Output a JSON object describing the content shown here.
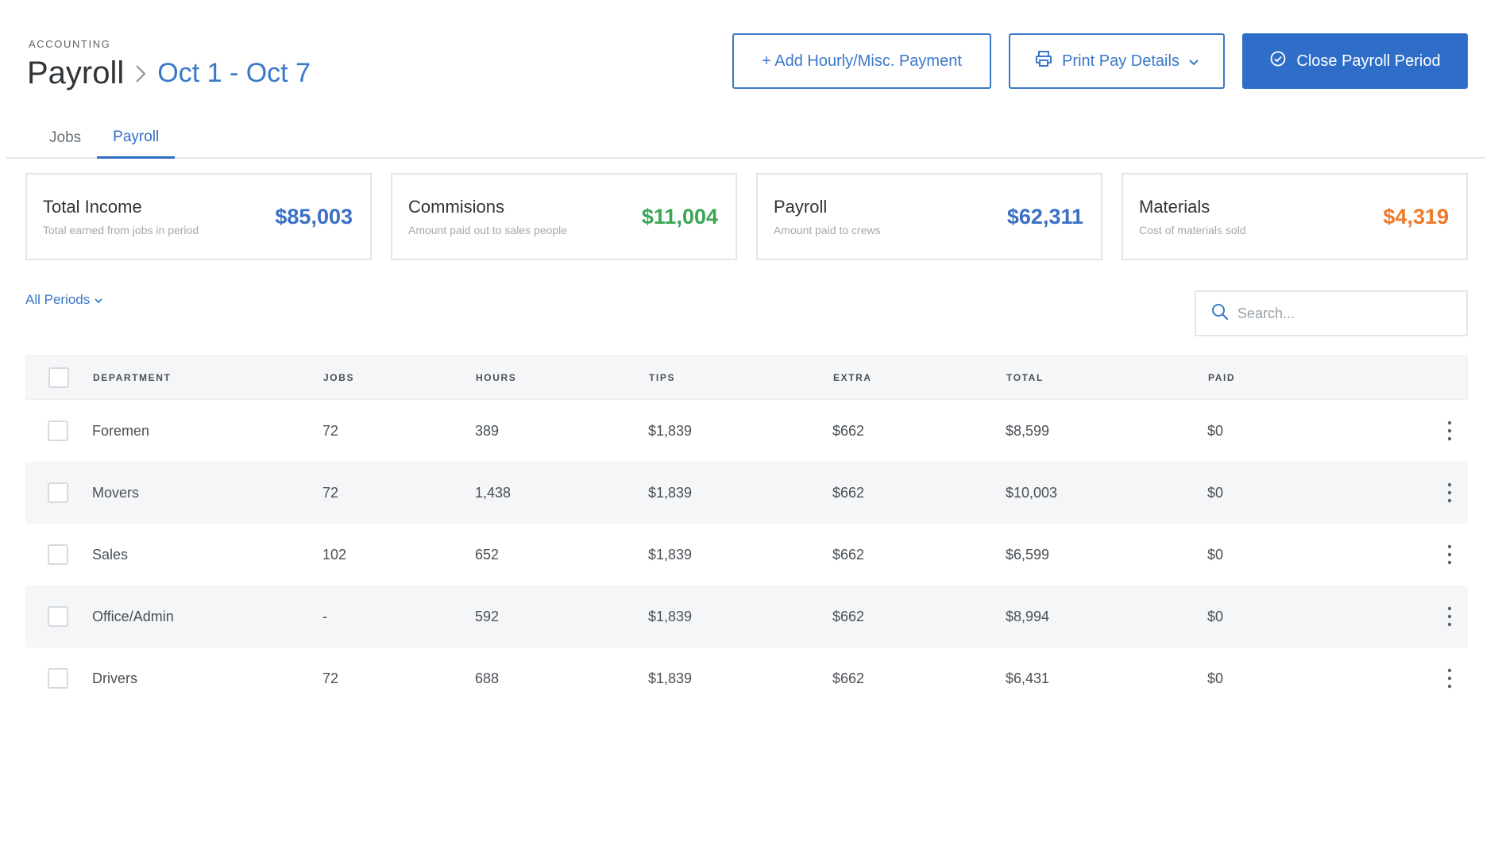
{
  "header": {
    "eyebrow": "ACCOUNTING",
    "title": "Payroll",
    "period": "Oct 1 - Oct 7"
  },
  "actions": {
    "add_label": "+ Add Hourly/Misc. Payment",
    "print_label": "Print Pay Details",
    "close_label": "Close Payroll Period"
  },
  "tabs": [
    {
      "label": "Jobs",
      "active": false
    },
    {
      "label": "Payroll",
      "active": true
    }
  ],
  "cards": [
    {
      "name": "Total Income",
      "desc": "Total earned from jobs in period",
      "value": "$85,003",
      "color": "#3a6fc4"
    },
    {
      "name": "Commisions",
      "desc": "Amount paid out to sales people",
      "value": "$11,004",
      "color": "#3aa655"
    },
    {
      "name": "Payroll",
      "desc": "Amount paid to crews",
      "value": "$62,311",
      "color": "#3a6fc4"
    },
    {
      "name": "Materials",
      "desc": "Cost of materials sold",
      "value": "$4,319",
      "color": "#ec7a2a"
    }
  ],
  "filter": {
    "label": "All Periods"
  },
  "search": {
    "placeholder": "Search..."
  },
  "table": {
    "columns": [
      "DEPARTMENT",
      "JOBS",
      "HOURS",
      "TIPS",
      "EXTRA",
      "TOTAL",
      "PAID"
    ],
    "rows": [
      {
        "department": "Foremen",
        "jobs": "72",
        "hours": "389",
        "tips": "$1,839",
        "extra": "$662",
        "total": "$8,599",
        "paid": "$0"
      },
      {
        "department": "Movers",
        "jobs": "72",
        "hours": "1,438",
        "tips": "$1,839",
        "extra": "$662",
        "total": "$10,003",
        "paid": "$0"
      },
      {
        "department": "Sales",
        "jobs": "102",
        "hours": "652",
        "tips": "$1,839",
        "extra": "$662",
        "total": "$6,599",
        "paid": "$0"
      },
      {
        "department": "Office/Admin",
        "jobs": "-",
        "hours": "592",
        "tips": "$1,839",
        "extra": "$662",
        "total": "$8,994",
        "paid": "$0"
      },
      {
        "department": "Drivers",
        "jobs": "72",
        "hours": "688",
        "tips": "$1,839",
        "extra": "$662",
        "total": "$6,431",
        "paid": "$0"
      }
    ]
  },
  "icons": {
    "breadcrumb": "chevron-right-icon",
    "print": "printer-icon",
    "dropdown": "chevron-down-icon",
    "close": "check-circle-icon",
    "search": "search-icon",
    "row_menu": "kebab-menu-icon"
  },
  "colors": {
    "accent": "#2f6ec8",
    "income": "#3a6fc4",
    "commissions": "#3aa655",
    "materials": "#ec7a2a"
  }
}
